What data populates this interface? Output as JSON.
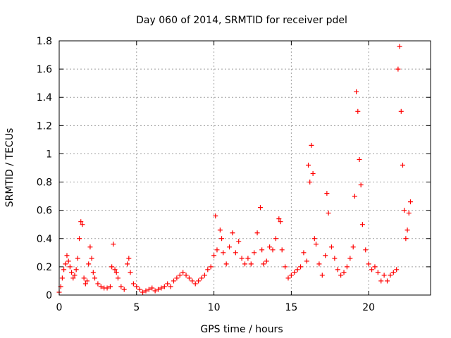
{
  "chart_data": {
    "type": "scatter",
    "title": "Day 060 of 2014, SRMTID for receiver pdel",
    "xlabel": "GPS time / hours",
    "ylabel": "SRMTID / TECUs",
    "xlim": [
      0,
      24
    ],
    "ylim": [
      0,
      1.8
    ],
    "xticks": [
      0,
      5,
      10,
      15,
      20
    ],
    "yticks": [
      0,
      0.2,
      0.4,
      0.6,
      0.8,
      1,
      1.2,
      1.4,
      1.6,
      1.8
    ],
    "xtick_labels": [
      "0",
      "5",
      "10",
      "15",
      "20"
    ],
    "ytick_labels": [
      "0",
      "0.2",
      "0.4",
      "0.6",
      "0.8",
      "1",
      "1.2",
      "1.4",
      "1.6",
      "1.8"
    ],
    "grid": true,
    "marker": "plus",
    "color": "#ff0000",
    "series": [
      {
        "name": "SRMTID",
        "points": [
          [
            0.0,
            0.02
          ],
          [
            0.1,
            0.06
          ],
          [
            0.2,
            0.12
          ],
          [
            0.3,
            0.18
          ],
          [
            0.4,
            0.22
          ],
          [
            0.5,
            0.28
          ],
          [
            0.6,
            0.24
          ],
          [
            0.7,
            0.2
          ],
          [
            0.8,
            0.16
          ],
          [
            0.9,
            0.12
          ],
          [
            1.0,
            0.14
          ],
          [
            1.1,
            0.18
          ],
          [
            1.2,
            0.26
          ],
          [
            1.3,
            0.4
          ],
          [
            1.4,
            0.52
          ],
          [
            1.5,
            0.5
          ],
          [
            1.6,
            0.12
          ],
          [
            1.7,
            0.08
          ],
          [
            1.8,
            0.1
          ],
          [
            1.9,
            0.22
          ],
          [
            2.0,
            0.34
          ],
          [
            2.1,
            0.26
          ],
          [
            2.2,
            0.16
          ],
          [
            2.3,
            0.12
          ],
          [
            2.5,
            0.08
          ],
          [
            2.7,
            0.06
          ],
          [
            2.9,
            0.05
          ],
          [
            3.1,
            0.05
          ],
          [
            3.3,
            0.06
          ],
          [
            3.4,
            0.2
          ],
          [
            3.5,
            0.36
          ],
          [
            3.6,
            0.18
          ],
          [
            3.7,
            0.16
          ],
          [
            3.8,
            0.12
          ],
          [
            4.0,
            0.06
          ],
          [
            4.2,
            0.04
          ],
          [
            4.4,
            0.22
          ],
          [
            4.5,
            0.26
          ],
          [
            4.6,
            0.16
          ],
          [
            4.8,
            0.08
          ],
          [
            5.0,
            0.06
          ],
          [
            5.2,
            0.04
          ],
          [
            5.4,
            0.02
          ],
          [
            5.6,
            0.03
          ],
          [
            5.8,
            0.04
          ],
          [
            6.0,
            0.05
          ],
          [
            6.2,
            0.03
          ],
          [
            6.4,
            0.04
          ],
          [
            6.6,
            0.05
          ],
          [
            6.8,
            0.06
          ],
          [
            7.0,
            0.08
          ],
          [
            7.2,
            0.06
          ],
          [
            7.4,
            0.1
          ],
          [
            7.6,
            0.12
          ],
          [
            7.8,
            0.14
          ],
          [
            8.0,
            0.16
          ],
          [
            8.2,
            0.14
          ],
          [
            8.4,
            0.12
          ],
          [
            8.6,
            0.1
          ],
          [
            8.8,
            0.08
          ],
          [
            9.0,
            0.1
          ],
          [
            9.2,
            0.12
          ],
          [
            9.4,
            0.14
          ],
          [
            9.6,
            0.18
          ],
          [
            9.8,
            0.2
          ],
          [
            10.0,
            0.28
          ],
          [
            10.1,
            0.56
          ],
          [
            10.2,
            0.32
          ],
          [
            10.4,
            0.46
          ],
          [
            10.5,
            0.4
          ],
          [
            10.6,
            0.3
          ],
          [
            10.8,
            0.22
          ],
          [
            11.0,
            0.34
          ],
          [
            11.2,
            0.44
          ],
          [
            11.4,
            0.3
          ],
          [
            11.6,
            0.38
          ],
          [
            11.8,
            0.26
          ],
          [
            12.0,
            0.22
          ],
          [
            12.2,
            0.26
          ],
          [
            12.4,
            0.22
          ],
          [
            12.6,
            0.3
          ],
          [
            12.8,
            0.44
          ],
          [
            13.0,
            0.62
          ],
          [
            13.1,
            0.32
          ],
          [
            13.2,
            0.22
          ],
          [
            13.4,
            0.24
          ],
          [
            13.6,
            0.34
          ],
          [
            13.8,
            0.32
          ],
          [
            14.0,
            0.4
          ],
          [
            14.2,
            0.54
          ],
          [
            14.3,
            0.52
          ],
          [
            14.4,
            0.32
          ],
          [
            14.6,
            0.2
          ],
          [
            14.8,
            0.12
          ],
          [
            15.0,
            0.14
          ],
          [
            15.2,
            0.16
          ],
          [
            15.4,
            0.18
          ],
          [
            15.6,
            0.2
          ],
          [
            15.8,
            0.3
          ],
          [
            16.0,
            0.24
          ],
          [
            16.1,
            0.92
          ],
          [
            16.2,
            0.8
          ],
          [
            16.3,
            1.06
          ],
          [
            16.4,
            0.86
          ],
          [
            16.5,
            0.4
          ],
          [
            16.6,
            0.36
          ],
          [
            16.8,
            0.22
          ],
          [
            17.0,
            0.14
          ],
          [
            17.2,
            0.28
          ],
          [
            17.3,
            0.72
          ],
          [
            17.4,
            0.58
          ],
          [
            17.6,
            0.34
          ],
          [
            17.8,
            0.26
          ],
          [
            18.0,
            0.18
          ],
          [
            18.2,
            0.14
          ],
          [
            18.4,
            0.16
          ],
          [
            18.6,
            0.2
          ],
          [
            18.8,
            0.26
          ],
          [
            19.0,
            0.34
          ],
          [
            19.1,
            0.7
          ],
          [
            19.2,
            1.44
          ],
          [
            19.3,
            1.3
          ],
          [
            19.4,
            0.96
          ],
          [
            19.5,
            0.78
          ],
          [
            19.6,
            0.5
          ],
          [
            19.8,
            0.32
          ],
          [
            20.0,
            0.22
          ],
          [
            20.2,
            0.18
          ],
          [
            20.4,
            0.2
          ],
          [
            20.6,
            0.16
          ],
          [
            20.8,
            0.1
          ],
          [
            21.0,
            0.14
          ],
          [
            21.2,
            0.1
          ],
          [
            21.4,
            0.14
          ],
          [
            21.6,
            0.16
          ],
          [
            21.8,
            0.18
          ],
          [
            21.9,
            1.6
          ],
          [
            22.0,
            1.76
          ],
          [
            22.1,
            1.3
          ],
          [
            22.2,
            0.92
          ],
          [
            22.3,
            0.6
          ],
          [
            22.4,
            0.4
          ],
          [
            22.5,
            0.46
          ],
          [
            22.6,
            0.58
          ],
          [
            22.7,
            0.66
          ]
        ]
      }
    ]
  }
}
